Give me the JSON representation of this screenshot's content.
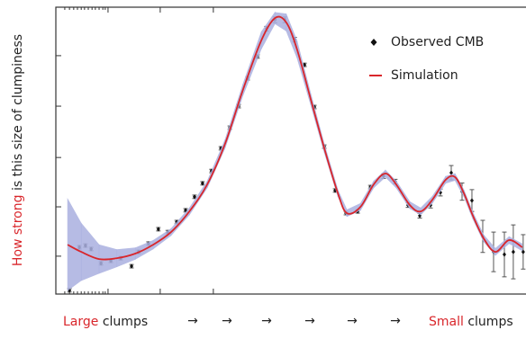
{
  "chart_data": {
    "type": "scatter",
    "ylabel": {
      "highlight": "How strong",
      "rest": "is this size of clumpiness"
    },
    "xlabel": {
      "left_highlight": "Large",
      "left": "clumps",
      "arrows": [
        "→",
        "→",
        "→",
        "→",
        "→",
        "→"
      ],
      "right_highlight": "Small",
      "right": "clumps"
    },
    "highlight_color": "#d9262b",
    "xlim": [
      0,
      100
    ],
    "ylim": [
      0,
      100
    ],
    "xticks": [
      11.1,
      22.2,
      33.5
    ],
    "xticks_minor": [
      1.9,
      2.9,
      3.8,
      4.6,
      5.4,
      6.1,
      6.9,
      7.7,
      8.4,
      9.2,
      10.0,
      10.5
    ],
    "yticks": [
      13.2,
      30.4,
      47.6,
      65.5,
      83.1
    ],
    "legend": "upper right",
    "series": [
      {
        "name": "Observed CMB",
        "type": "scatter",
        "color": "#111111",
        "x": [
          2.9,
          5.0,
          6.3,
          7.5,
          9.6,
          11.7,
          13.8,
          16.1,
          17.6,
          19.7,
          21.8,
          23.8,
          25.7,
          27.6,
          29.5,
          31.2,
          33.1,
          35.1,
          37.0,
          38.9,
          40.8,
          42.9,
          44.8,
          46.6,
          48.7,
          50.8,
          52.9,
          55.0,
          57.1,
          59.4,
          61.7,
          64.2,
          66.9,
          69.7,
          72.2,
          74.9,
          77.4,
          79.7,
          81.8,
          84.1,
          86.4,
          88.5,
          90.8,
          93.1,
          95.4,
          97.3,
          99.4
        ],
        "values": [
          1.3,
          16.3,
          16.9,
          15.7,
          10.7,
          11.6,
          12.5,
          9.7,
          14.7,
          17.6,
          22.6,
          21.6,
          25.1,
          29.2,
          33.9,
          38.6,
          42.9,
          50.8,
          58.0,
          65.5,
          75.2,
          82.8,
          92.5,
          95.6,
          95.6,
          88.7,
          79.9,
          65.2,
          51.4,
          36.1,
          28.2,
          28.8,
          37.3,
          41.1,
          39.2,
          31.0,
          27.3,
          31.0,
          35.4,
          42.3,
          35.7,
          32.6,
          20.1,
          14.7,
          13.8,
          14.7,
          14.7
        ],
        "errors": [
          0.6,
          0.6,
          0.6,
          0.6,
          0.6,
          0.6,
          0.6,
          0.6,
          0.6,
          0.6,
          0.6,
          0.6,
          0.6,
          0.6,
          0.6,
          0.6,
          0.6,
          0.6,
          0.6,
          0.6,
          0.6,
          0.6,
          0.8,
          1,
          1,
          0.8,
          0.6,
          0.6,
          0.6,
          0.6,
          0.6,
          0.6,
          0.6,
          0.8,
          0.8,
          0.8,
          0.8,
          1,
          1.2,
          2.5,
          3,
          3.8,
          5.6,
          6.9,
          7.8,
          9.4,
          6
        ]
      },
      {
        "name": "Simulation",
        "type": "line",
        "color": "#d9262b",
        "band_color": "#aab0e0",
        "x": [
          2.5,
          5.4,
          9.2,
          13.0,
          16.9,
          20.7,
          24.5,
          28.4,
          32.2,
          36.0,
          39.8,
          43.7,
          46.6,
          49.0,
          51.3,
          54.2,
          57.1,
          60.0,
          61.9,
          64.8,
          67.6,
          70.1,
          72.4,
          75.3,
          77.6,
          80.1,
          82.9,
          84.9,
          86.8,
          88.7,
          91.0,
          93.5,
          96.4,
          99.2
        ],
        "values": [
          17.2,
          14.7,
          12.2,
          12.5,
          14.1,
          17.2,
          21.6,
          28.8,
          38.2,
          52.4,
          71.2,
          88.4,
          96.2,
          94.7,
          85.3,
          68.0,
          50.8,
          35.1,
          28.2,
          30.4,
          38.2,
          42.0,
          38.2,
          31.0,
          28.8,
          32.9,
          39.8,
          40.8,
          35.1,
          27.3,
          19.4,
          14.7,
          18.8,
          16.3
        ],
        "band_upper": [
          33.2,
          24.7,
          17.2,
          15.5,
          16.1,
          18.7,
          22.8,
          30.0,
          39.4,
          53.9,
          73.2,
          91.4,
          98.2,
          97.7,
          88.3,
          70.0,
          52.3,
          36.3,
          29.4,
          31.6,
          39.4,
          43.2,
          39.4,
          32.2,
          30.0,
          34.1,
          41.0,
          42.0,
          36.3,
          28.5,
          20.6,
          15.9,
          20.0,
          17.5
        ],
        "band_lower": [
          1.2,
          4.7,
          7.2,
          9.5,
          12.1,
          15.7,
          20.4,
          27.6,
          37.0,
          50.9,
          69.2,
          85.4,
          94.2,
          91.7,
          82.3,
          66.0,
          49.3,
          33.9,
          27.0,
          29.2,
          37.0,
          40.8,
          37.0,
          29.8,
          27.6,
          31.7,
          38.6,
          39.6,
          33.9,
          26.1,
          18.2,
          13.5,
          17.6,
          15.1
        ]
      }
    ]
  }
}
